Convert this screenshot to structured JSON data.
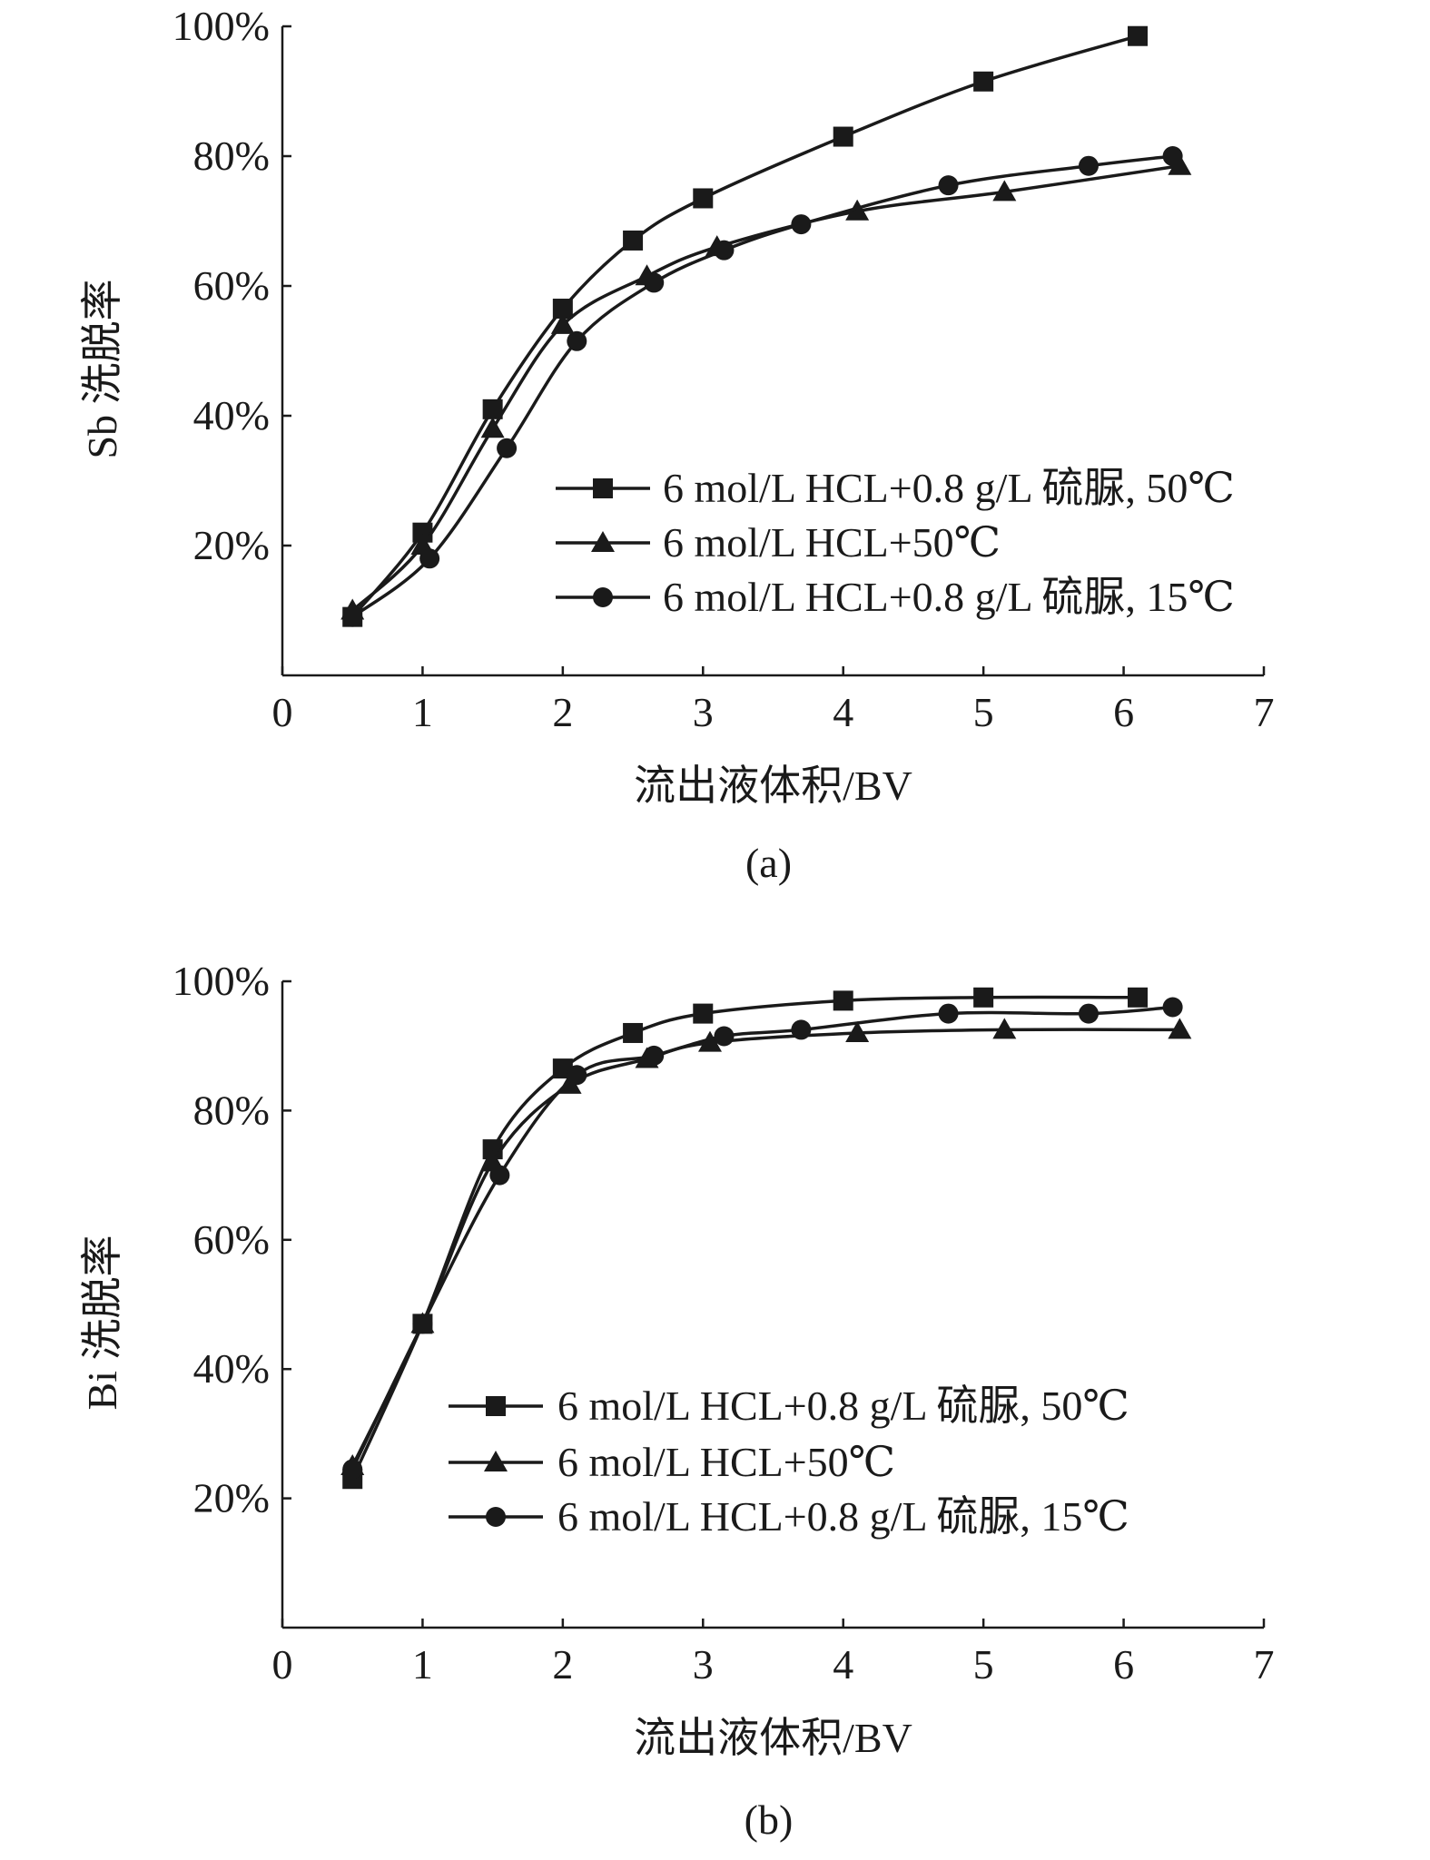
{
  "chart_data": [
    {
      "type": "line",
      "panel_label": "(a)",
      "xlabel": "流出液体积/BV",
      "ylabel": "Sb 洗脱率",
      "xlim": [
        0,
        7
      ],
      "ylim": [
        0,
        100
      ],
      "x_ticks": [
        "0",
        "1",
        "2",
        "3",
        "4",
        "5",
        "6",
        "7"
      ],
      "y_ticks": [
        "20%",
        "40%",
        "60%",
        "80%",
        "100%"
      ],
      "grid": false,
      "legend_position": "lower-right",
      "series": [
        {
          "name": "6 mol/L HCL+0.8 g/L 硫脲, 50℃",
          "marker": "square",
          "x": [
            0.5,
            1.0,
            1.5,
            2.0,
            2.5,
            3.0,
            4.0,
            5.0,
            6.1
          ],
          "y": [
            9,
            22,
            41,
            56.5,
            67,
            73.5,
            83,
            91.5,
            98.5
          ]
        },
        {
          "name": "6 mol/L HCL+50℃",
          "marker": "triangle",
          "x": [
            0.5,
            1.0,
            1.5,
            2.0,
            2.6,
            3.1,
            4.1,
            5.15,
            6.4
          ],
          "y": [
            10,
            20,
            38,
            54,
            61.5,
            66,
            71.5,
            74.5,
            78.5
          ]
        },
        {
          "name": "6 mol/L HCL+0.8 g/L 硫脲, 15℃",
          "marker": "circle",
          "x": [
            0.5,
            1.05,
            1.6,
            2.1,
            2.65,
            3.15,
            3.7,
            4.75,
            5.75,
            6.35
          ],
          "y": [
            9,
            18,
            35,
            51.5,
            60.5,
            65.5,
            69.5,
            75.5,
            78.5,
            80
          ]
        }
      ]
    },
    {
      "type": "line",
      "panel_label": "(b)",
      "xlabel": "流出液体积/BV",
      "ylabel": "Bi 洗脱率",
      "xlim": [
        0,
        7
      ],
      "ylim": [
        0,
        100
      ],
      "x_ticks": [
        "0",
        "1",
        "2",
        "3",
        "4",
        "5",
        "6",
        "7"
      ],
      "y_ticks": [
        "20%",
        "40%",
        "60%",
        "80%",
        "100%"
      ],
      "grid": false,
      "legend_position": "lower-right",
      "series": [
        {
          "name": "6 mol/L HCL+0.8 g/L 硫脲, 50℃",
          "marker": "square",
          "x": [
            0.5,
            1.0,
            1.5,
            2.0,
            2.5,
            3.0,
            4.0,
            5.0,
            6.1
          ],
          "y": [
            23,
            47,
            74,
            86.5,
            92,
            95,
            97,
            97.5,
            97.5
          ]
        },
        {
          "name": "6 mol/L HCL+50℃",
          "marker": "triangle",
          "x": [
            0.5,
            1.0,
            1.5,
            2.05,
            2.6,
            3.05,
            4.1,
            5.15,
            6.4
          ],
          "y": [
            25,
            47,
            72,
            84,
            88,
            90.5,
            92,
            92.5,
            92.5
          ]
        },
        {
          "name": "6 mol/L HCL+0.8 g/L 硫脲, 15℃",
          "marker": "circle",
          "x": [
            0.5,
            1.0,
            1.55,
            2.1,
            2.65,
            3.15,
            3.7,
            4.75,
            5.75,
            6.35
          ],
          "y": [
            24.5,
            47,
            70,
            85.5,
            88.5,
            91.5,
            92.5,
            95,
            95,
            96
          ]
        }
      ]
    }
  ]
}
